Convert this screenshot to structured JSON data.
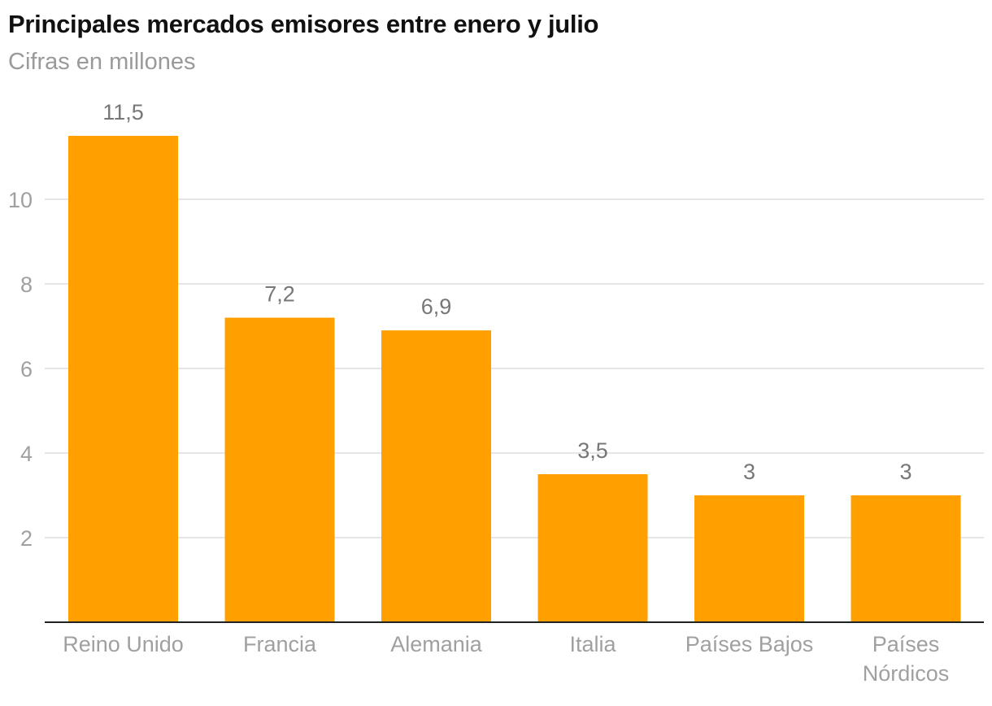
{
  "chart_data": {
    "type": "bar",
    "title": "Principales mercados emisores entre enero y julio",
    "subtitle": "Cifras en millones",
    "categories": [
      "Reino Unido",
      "Francia",
      "Alemania",
      "Italia",
      "Países Bajos",
      "Países Nórdicos"
    ],
    "category_lines": [
      [
        "Reino Unido"
      ],
      [
        "Francia"
      ],
      [
        "Alemania"
      ],
      [
        "Italia"
      ],
      [
        "Países Bajos"
      ],
      [
        "Países",
        "Nórdicos"
      ]
    ],
    "values": [
      11.5,
      7.2,
      6.9,
      3.5,
      3,
      3
    ],
    "value_labels": [
      "11,5",
      "7,2",
      "6,9",
      "3,5",
      "3",
      "3"
    ],
    "yticks": [
      2,
      4,
      6,
      8,
      10
    ],
    "ylim": [
      0,
      12
    ],
    "grid": true,
    "xlabel": "",
    "ylabel": "",
    "colors": {
      "bar": "#FFA000",
      "grid": "#dddddd",
      "axis": "#222222",
      "tick_text": "#a0a0a0",
      "value_text": "#777777"
    }
  }
}
